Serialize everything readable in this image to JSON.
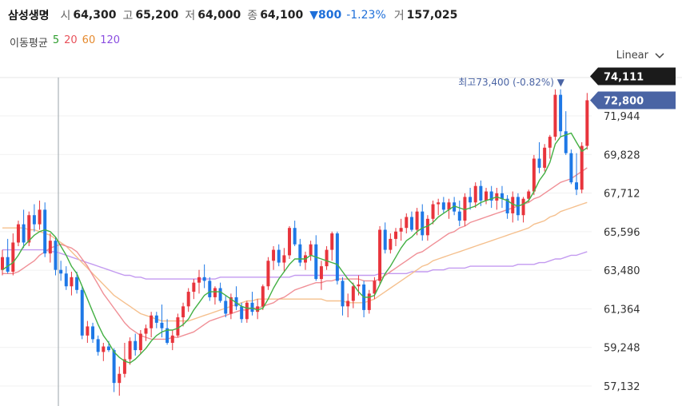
{
  "header": {
    "name": "삼성생명",
    "open_label": "시",
    "open": "64,300",
    "high_label": "고",
    "high": "65,200",
    "low_label": "저",
    "low": "64,000",
    "close_label": "종",
    "close": "64,100",
    "change": "▼800",
    "change_pct": "-1.23%",
    "volume_label": "거",
    "volume": "157,025"
  },
  "ma_legend": {
    "label": "이동평균",
    "items": [
      {
        "text": "5",
        "color": "#2e9d2e"
      },
      {
        "text": "20",
        "color": "#e8525b"
      },
      {
        "text": "60",
        "color": "#e58a2e"
      },
      {
        "text": "120",
        "color": "#8a4ee0"
      }
    ]
  },
  "scale": {
    "label": "Linear"
  },
  "max_annotation": "최고73,400 (-0.82%) ▼",
  "colors": {
    "up": "#e8343c",
    "down": "#1e78e6",
    "crosshair": "#9aa3aa",
    "last_price_bg": "#1b1b1b",
    "current_price_bg": "#4a64a4"
  },
  "chart_data": {
    "type": "candlestick",
    "y_ticks": [
      71944,
      69828,
      67712,
      65596,
      63480,
      61364,
      59248,
      57132
    ],
    "y_tick_labels": [
      "71,944",
      "69,828",
      "67,712",
      "65,596",
      "63,480",
      "61,364",
      "59,248",
      "57,132"
    ],
    "last_price_label": "74,111",
    "current_price_label": "72,800",
    "last_price": 74111,
    "current_price": 72800,
    "max_value": 73400,
    "ylim": [
      56500,
      75000
    ],
    "candles": [
      [
        63500,
        64600,
        63200,
        64200
      ],
      [
        64200,
        65200,
        63300,
        63400
      ],
      [
        63400,
        65500,
        63200,
        65000
      ],
      [
        65000,
        66200,
        64800,
        66000
      ],
      [
        66000,
        66800,
        64700,
        65000
      ],
      [
        65000,
        66700,
        64800,
        66500
      ],
      [
        66500,
        67100,
        65600,
        66000
      ],
      [
        66000,
        67300,
        65700,
        66800
      ],
      [
        66800,
        67200,
        64200,
        64400
      ],
      [
        64400,
        65500,
        63900,
        65100
      ],
      [
        65100,
        65300,
        63200,
        63500
      ],
      [
        63500,
        64000,
        62900,
        63300
      ],
      [
        63300,
        63700,
        62400,
        62600
      ],
      [
        62600,
        63400,
        62100,
        63100
      ],
      [
        63100,
        63400,
        62200,
        62400
      ],
      [
        62400,
        62600,
        59700,
        59900
      ],
      [
        59900,
        60700,
        59500,
        60400
      ],
      [
        60400,
        60600,
        59500,
        59700
      ],
      [
        59700,
        59900,
        58800,
        59000
      ],
      [
        59000,
        59500,
        58500,
        59300
      ],
      [
        59300,
        59600,
        59000,
        59100
      ],
      [
        59100,
        59200,
        56800,
        57300
      ],
      [
        57300,
        58200,
        56600,
        57800
      ],
      [
        57800,
        59500,
        57600,
        58600
      ],
      [
        58600,
        59800,
        58300,
        59600
      ],
      [
        59600,
        60000,
        58800,
        59100
      ],
      [
        59100,
        60200,
        58900,
        60000
      ],
      [
        60000,
        60500,
        59600,
        60300
      ],
      [
        60300,
        61200,
        59800,
        61000
      ],
      [
        61000,
        61200,
        60300,
        60600
      ],
      [
        60600,
        61600,
        59800,
        60300
      ],
      [
        60300,
        60800,
        59400,
        59500
      ],
      [
        59500,
        60200,
        59100,
        59900
      ],
      [
        59900,
        61100,
        59800,
        60900
      ],
      [
        60900,
        61700,
        60400,
        61500
      ],
      [
        61500,
        62500,
        61200,
        62300
      ],
      [
        62300,
        63000,
        61900,
        62800
      ],
      [
        62800,
        63500,
        62200,
        63100
      ],
      [
        63100,
        63800,
        62500,
        62900
      ],
      [
        62900,
        63100,
        61800,
        62000
      ],
      [
        62000,
        62600,
        61600,
        62500
      ],
      [
        62500,
        62800,
        61700,
        61800
      ],
      [
        61800,
        62100,
        60900,
        61100
      ],
      [
        61100,
        62200,
        60800,
        62000
      ],
      [
        62000,
        62600,
        61300,
        61500
      ],
      [
        61500,
        61700,
        60600,
        60800
      ],
      [
        60800,
        61800,
        60600,
        61700
      ],
      [
        61700,
        62300,
        61000,
        61200
      ],
      [
        61200,
        61900,
        60800,
        61500
      ],
      [
        61500,
        62700,
        61300,
        62600
      ],
      [
        62600,
        64200,
        62400,
        64000
      ],
      [
        64000,
        64800,
        63500,
        64600
      ],
      [
        64600,
        64900,
        63700,
        63900
      ],
      [
        63900,
        64700,
        63400,
        64300
      ],
      [
        64300,
        65900,
        64100,
        65800
      ],
      [
        65800,
        66200,
        64800,
        64900
      ],
      [
        64900,
        65200,
        63700,
        63900
      ],
      [
        63900,
        64500,
        63500,
        64300
      ],
      [
        64300,
        65100,
        64000,
        64900
      ],
      [
        64900,
        65400,
        62900,
        63000
      ],
      [
        63000,
        64000,
        62400,
        63700
      ],
      [
        63700,
        64800,
        63500,
        64600
      ],
      [
        64600,
        65600,
        64000,
        65500
      ],
      [
        65500,
        65600,
        62700,
        62900
      ],
      [
        62900,
        63100,
        61000,
        61500
      ],
      [
        61500,
        62200,
        60900,
        61800
      ],
      [
        61800,
        62800,
        61400,
        62600
      ],
      [
        62600,
        63200,
        62100,
        62700
      ],
      [
        62700,
        62900,
        60900,
        61300
      ],
      [
        61300,
        62400,
        61100,
        62200
      ],
      [
        62200,
        63100,
        61900,
        62900
      ],
      [
        62900,
        65900,
        62700,
        65700
      ],
      [
        65700,
        66100,
        64400,
        64600
      ],
      [
        64600,
        65500,
        64400,
        65200
      ],
      [
        65200,
        65800,
        64800,
        65600
      ],
      [
        65600,
        66300,
        65100,
        65800
      ],
      [
        65800,
        66600,
        65500,
        66400
      ],
      [
        66400,
        66700,
        65600,
        65700
      ],
      [
        65700,
        66900,
        65400,
        66700
      ],
      [
        66700,
        67100,
        65100,
        65400
      ],
      [
        65400,
        66500,
        65100,
        66300
      ],
      [
        66300,
        67300,
        66000,
        67100
      ],
      [
        67100,
        67400,
        66500,
        67200
      ],
      [
        67200,
        67500,
        66600,
        66800
      ],
      [
        66800,
        67400,
        66300,
        67200
      ],
      [
        67200,
        67500,
        66500,
        66700
      ],
      [
        66700,
        67300,
        65900,
        66200
      ],
      [
        66200,
        67700,
        65900,
        67500
      ],
      [
        67500,
        68000,
        66800,
        67200
      ],
      [
        67200,
        68300,
        66900,
        68100
      ],
      [
        68100,
        68400,
        67000,
        67300
      ],
      [
        67300,
        68000,
        67100,
        67800
      ],
      [
        67800,
        68100,
        66900,
        67300
      ],
      [
        67300,
        68000,
        66800,
        67700
      ],
      [
        67700,
        68100,
        66900,
        67400
      ],
      [
        67400,
        67600,
        66300,
        66600
      ],
      [
        66600,
        67800,
        66100,
        67500
      ],
      [
        67500,
        67700,
        66200,
        66500
      ],
      [
        66500,
        67500,
        66100,
        67400
      ],
      [
        67400,
        67900,
        67200,
        67800
      ],
      [
        67800,
        69800,
        67600,
        69600
      ],
      [
        69600,
        70500,
        68800,
        69100
      ],
      [
        69100,
        70400,
        68900,
        70200
      ],
      [
        70200,
        70900,
        69600,
        70800
      ],
      [
        70800,
        73400,
        70600,
        73100
      ],
      [
        73100,
        73400,
        70800,
        71100
      ],
      [
        71100,
        72200,
        69800,
        69900
      ],
      [
        69900,
        70100,
        68200,
        68300
      ],
      [
        68300,
        69900,
        67600,
        67900
      ],
      [
        67900,
        70500,
        67700,
        70300
      ],
      [
        70300,
        73200,
        70100,
        72800
      ]
    ],
    "ma5": [
      63500,
      63700,
      63900,
      64300,
      64800,
      65100,
      65400,
      65600,
      65700,
      65600,
      65300,
      64800,
      64300,
      63700,
      63300,
      62600,
      61900,
      61200,
      60500,
      59900,
      59500,
      59000,
      58700,
      58500,
      58400,
      58600,
      58900,
      59200,
      59600,
      59900,
      60100,
      60200,
      60200,
      60300,
      60500,
      60800,
      61300,
      61700,
      62100,
      62300,
      62300,
      62300,
      62100,
      61900,
      61700,
      61500,
      61400,
      61400,
      61300,
      61400,
      61900,
      62500,
      63000,
      63400,
      63800,
      64100,
      64100,
      64100,
      64300,
      64200,
      64100,
      64000,
      63900,
      63800,
      63400,
      63000,
      62700,
      62300,
      62000,
      62000,
      62100,
      62700,
      63300,
      63700,
      64200,
      64700,
      65100,
      65300,
      65600,
      65800,
      65900,
      66100,
      66400,
      66600,
      66800,
      67000,
      66900,
      66800,
      66900,
      67000,
      67200,
      67300,
      67400,
      67500,
      67400,
      67300,
      67100,
      67000,
      67100,
      67300,
      67800,
      68400,
      68800,
      69400,
      70400,
      70800,
      70900,
      71000,
      70500,
      70000,
      70200
    ],
    "ma20": [
      63300,
      63300,
      63300,
      63400,
      63600,
      63800,
      64000,
      64300,
      64500,
      64700,
      64800,
      64900,
      64800,
      64700,
      64500,
      64100,
      63700,
      63200,
      62700,
      62200,
      61800,
      61400,
      61000,
      60600,
      60300,
      60100,
      59900,
      59800,
      59700,
      59700,
      59700,
      59700,
      59800,
      59800,
      59900,
      60000,
      60100,
      60300,
      60500,
      60700,
      60800,
      60900,
      61000,
      61100,
      61200,
      61300,
      61300,
      61400,
      61400,
      61500,
      61600,
      61700,
      61900,
      62000,
      62200,
      62400,
      62500,
      62600,
      62700,
      62800,
      62800,
      62900,
      62900,
      63000,
      63000,
      63000,
      63000,
      63000,
      62900,
      62900,
      62900,
      63000,
      63200,
      63400,
      63600,
      63800,
      64000,
      64200,
      64400,
      64500,
      64700,
      64900,
      65100,
      65300,
      65500,
      65600,
      65800,
      65900,
      66100,
      66200,
      66300,
      66400,
      66500,
      66600,
      66700,
      66800,
      66900,
      67000,
      67100,
      67200,
      67400,
      67500,
      67700,
      67900,
      68100,
      68300,
      68400,
      68500,
      68700,
      68900,
      69100
    ],
    "ma60": [
      65800,
      65800,
      65800,
      65800,
      65800,
      65700,
      65700,
      65600,
      65500,
      65400,
      65200,
      65000,
      64800,
      64500,
      64200,
      63900,
      63600,
      63300,
      63000,
      62700,
      62400,
      62100,
      61900,
      61700,
      61500,
      61300,
      61100,
      61000,
      60900,
      60800,
      60700,
      60700,
      60700,
      60700,
      60700,
      60700,
      60800,
      60900,
      61000,
      61100,
      61200,
      61300,
      61400,
      61500,
      61600,
      61700,
      61800,
      61800,
      61900,
      61900,
      61900,
      61900,
      61900,
      61900,
      61900,
      61900,
      61900,
      61900,
      61900,
      61900,
      61900,
      61800,
      61800,
      61800,
      61800,
      61700,
      61700,
      61700,
      61700,
      61800,
      61900,
      62100,
      62300,
      62500,
      62700,
      62900,
      63100,
      63300,
      63500,
      63700,
      63800,
      64000,
      64100,
      64200,
      64300,
      64400,
      64500,
      64600,
      64700,
      64800,
      64900,
      65000,
      65100,
      65200,
      65300,
      65400,
      65500,
      65600,
      65700,
      65800,
      66000,
      66100,
      66200,
      66400,
      66500,
      66700,
      66800,
      66900,
      67000,
      67100,
      67200
    ],
    "ma120": [
      64600,
      64600,
      64600,
      64600,
      64600,
      64600,
      64600,
      64600,
      64600,
      64500,
      64500,
      64400,
      64300,
      64200,
      64100,
      64000,
      63900,
      63800,
      63700,
      63600,
      63500,
      63400,
      63300,
      63200,
      63200,
      63100,
      63100,
      63000,
      63000,
      63000,
      63000,
      63000,
      63000,
      63000,
      63000,
      63000,
      63000,
      63000,
      63000,
      63000,
      63000,
      63100,
      63100,
      63100,
      63100,
      63100,
      63100,
      63100,
      63100,
      63100,
      63100,
      63100,
      63100,
      63100,
      63100,
      63200,
      63200,
      63200,
      63200,
      63200,
      63200,
      63200,
      63200,
      63200,
      63200,
      63200,
      63200,
      63200,
      63200,
      63200,
      63200,
      63300,
      63300,
      63300,
      63300,
      63300,
      63300,
      63400,
      63400,
      63400,
      63400,
      63500,
      63500,
      63500,
      63600,
      63600,
      63600,
      63600,
      63700,
      63700,
      63700,
      63700,
      63700,
      63700,
      63700,
      63700,
      63700,
      63800,
      63800,
      63800,
      63800,
      63900,
      63900,
      64000,
      64100,
      64100,
      64200,
      64300,
      64300,
      64400,
      64500
    ]
  }
}
